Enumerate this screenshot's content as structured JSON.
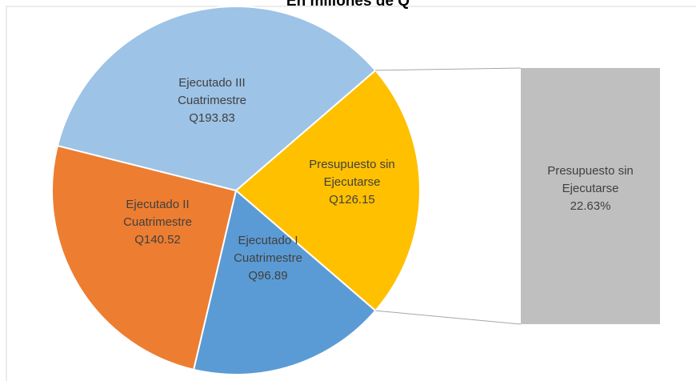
{
  "chart_data": {
    "type": "pie-of-bar",
    "title": "En millones de Q",
    "categories": [
      "Presupuesto sin Ejecutarse",
      "Ejecutado I Cuatrimestre",
      "Ejecutado II Cuatrimestre",
      "Ejecutado III Cuatrimestre"
    ],
    "values": [
      126.15,
      96.89,
      140.52,
      193.83
    ],
    "value_labels": [
      "Q126.15",
      "Q96.89",
      "Q140.52",
      "Q193.83"
    ],
    "colors": [
      "#ffc000",
      "#5b9bd5",
      "#ed7d31",
      "#9dc3e6"
    ],
    "breakout": {
      "name": "Presupuesto sin Ejecutarse",
      "value": 22.63,
      "value_label": "22.63%",
      "color": "#bfbfbf"
    }
  }
}
